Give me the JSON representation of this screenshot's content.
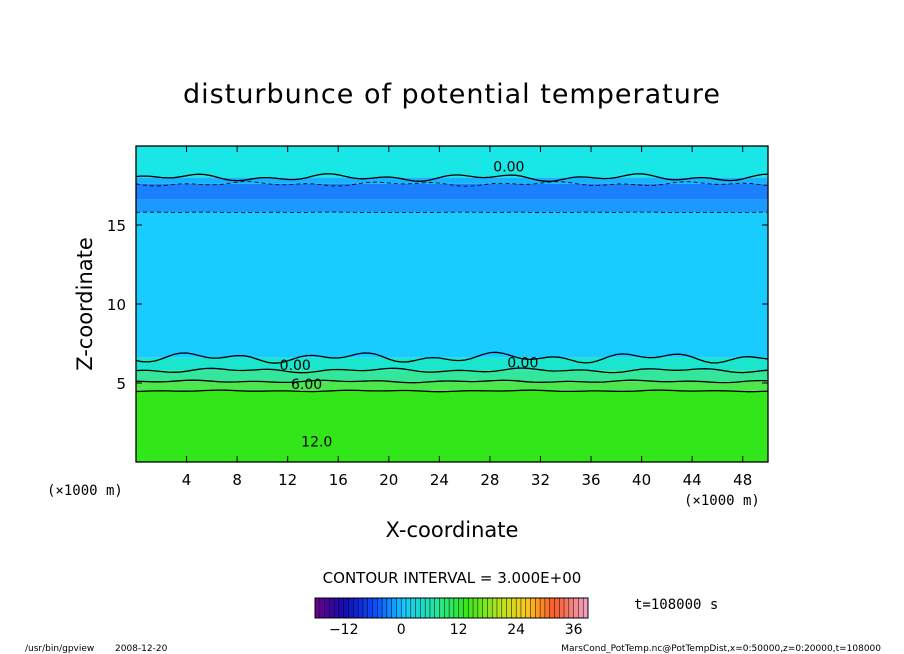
{
  "chart_data": {
    "type": "heatmap",
    "title": "disturbunce of potential temperature",
    "xlabel": "X-coordinate",
    "ylabel": "Z-coordinate",
    "x_unit_label_left": "(×1000 m)",
    "x_unit_label_right": "(×1000 m)",
    "xlim": [
      0,
      50
    ],
    "ylim": [
      0,
      20
    ],
    "xticks": [
      4,
      8,
      12,
      16,
      20,
      24,
      28,
      32,
      36,
      40,
      44,
      48
    ],
    "yticks": [
      5,
      10,
      15
    ],
    "fill_layers": [
      {
        "from": 0,
        "to": 4.5,
        "color": "#33e619"
      },
      {
        "from": 4.5,
        "to": 5.1,
        "color": "#4de64d"
      },
      {
        "from": 5.1,
        "to": 5.8,
        "color": "#33e699"
      },
      {
        "from": 5.8,
        "to": 6.6,
        "color": "#19e6cc"
      },
      {
        "from": 6.6,
        "to": 15.8,
        "color": "#19ccff"
      },
      {
        "from": 15.8,
        "to": 16.6,
        "color": "#1a99ff"
      },
      {
        "from": 16.6,
        "to": 17.6,
        "color": "#1a80ff"
      },
      {
        "from": 17.6,
        "to": 18.0,
        "color": "#19b3ff"
      },
      {
        "from": 18.0,
        "to": 20,
        "color": "#19e6e6"
      }
    ],
    "contour_labels": [
      {
        "text": "0.00",
        "x": 29.5,
        "y": 18.7
      },
      {
        "text": "0.00",
        "x": 12.6,
        "y": 6.15
      },
      {
        "text": "0.00",
        "x": 30.6,
        "y": 6.3
      },
      {
        "text": "6.00",
        "x": 13.5,
        "y": 4.95
      },
      {
        "text": "12.0",
        "x": 14.3,
        "y": 1.3
      }
    ],
    "contour_interval_text": "CONTOUR INTERVAL = 3.000E+00",
    "colorbar": {
      "min": -18,
      "max": 39,
      "ticks": [
        -12,
        0,
        12,
        24,
        36
      ],
      "tick_labels": [
        "−12",
        "0",
        "12",
        "24",
        "36"
      ]
    }
  },
  "time_label": "t=108000 s",
  "footer_left_program": "/usr/bin/gpview",
  "footer_left_date": "2008-12-20",
  "footer_right": "MarsCond_PotTemp.nc@PotTempDist,x=0:50000,z=0:20000,t=108000"
}
